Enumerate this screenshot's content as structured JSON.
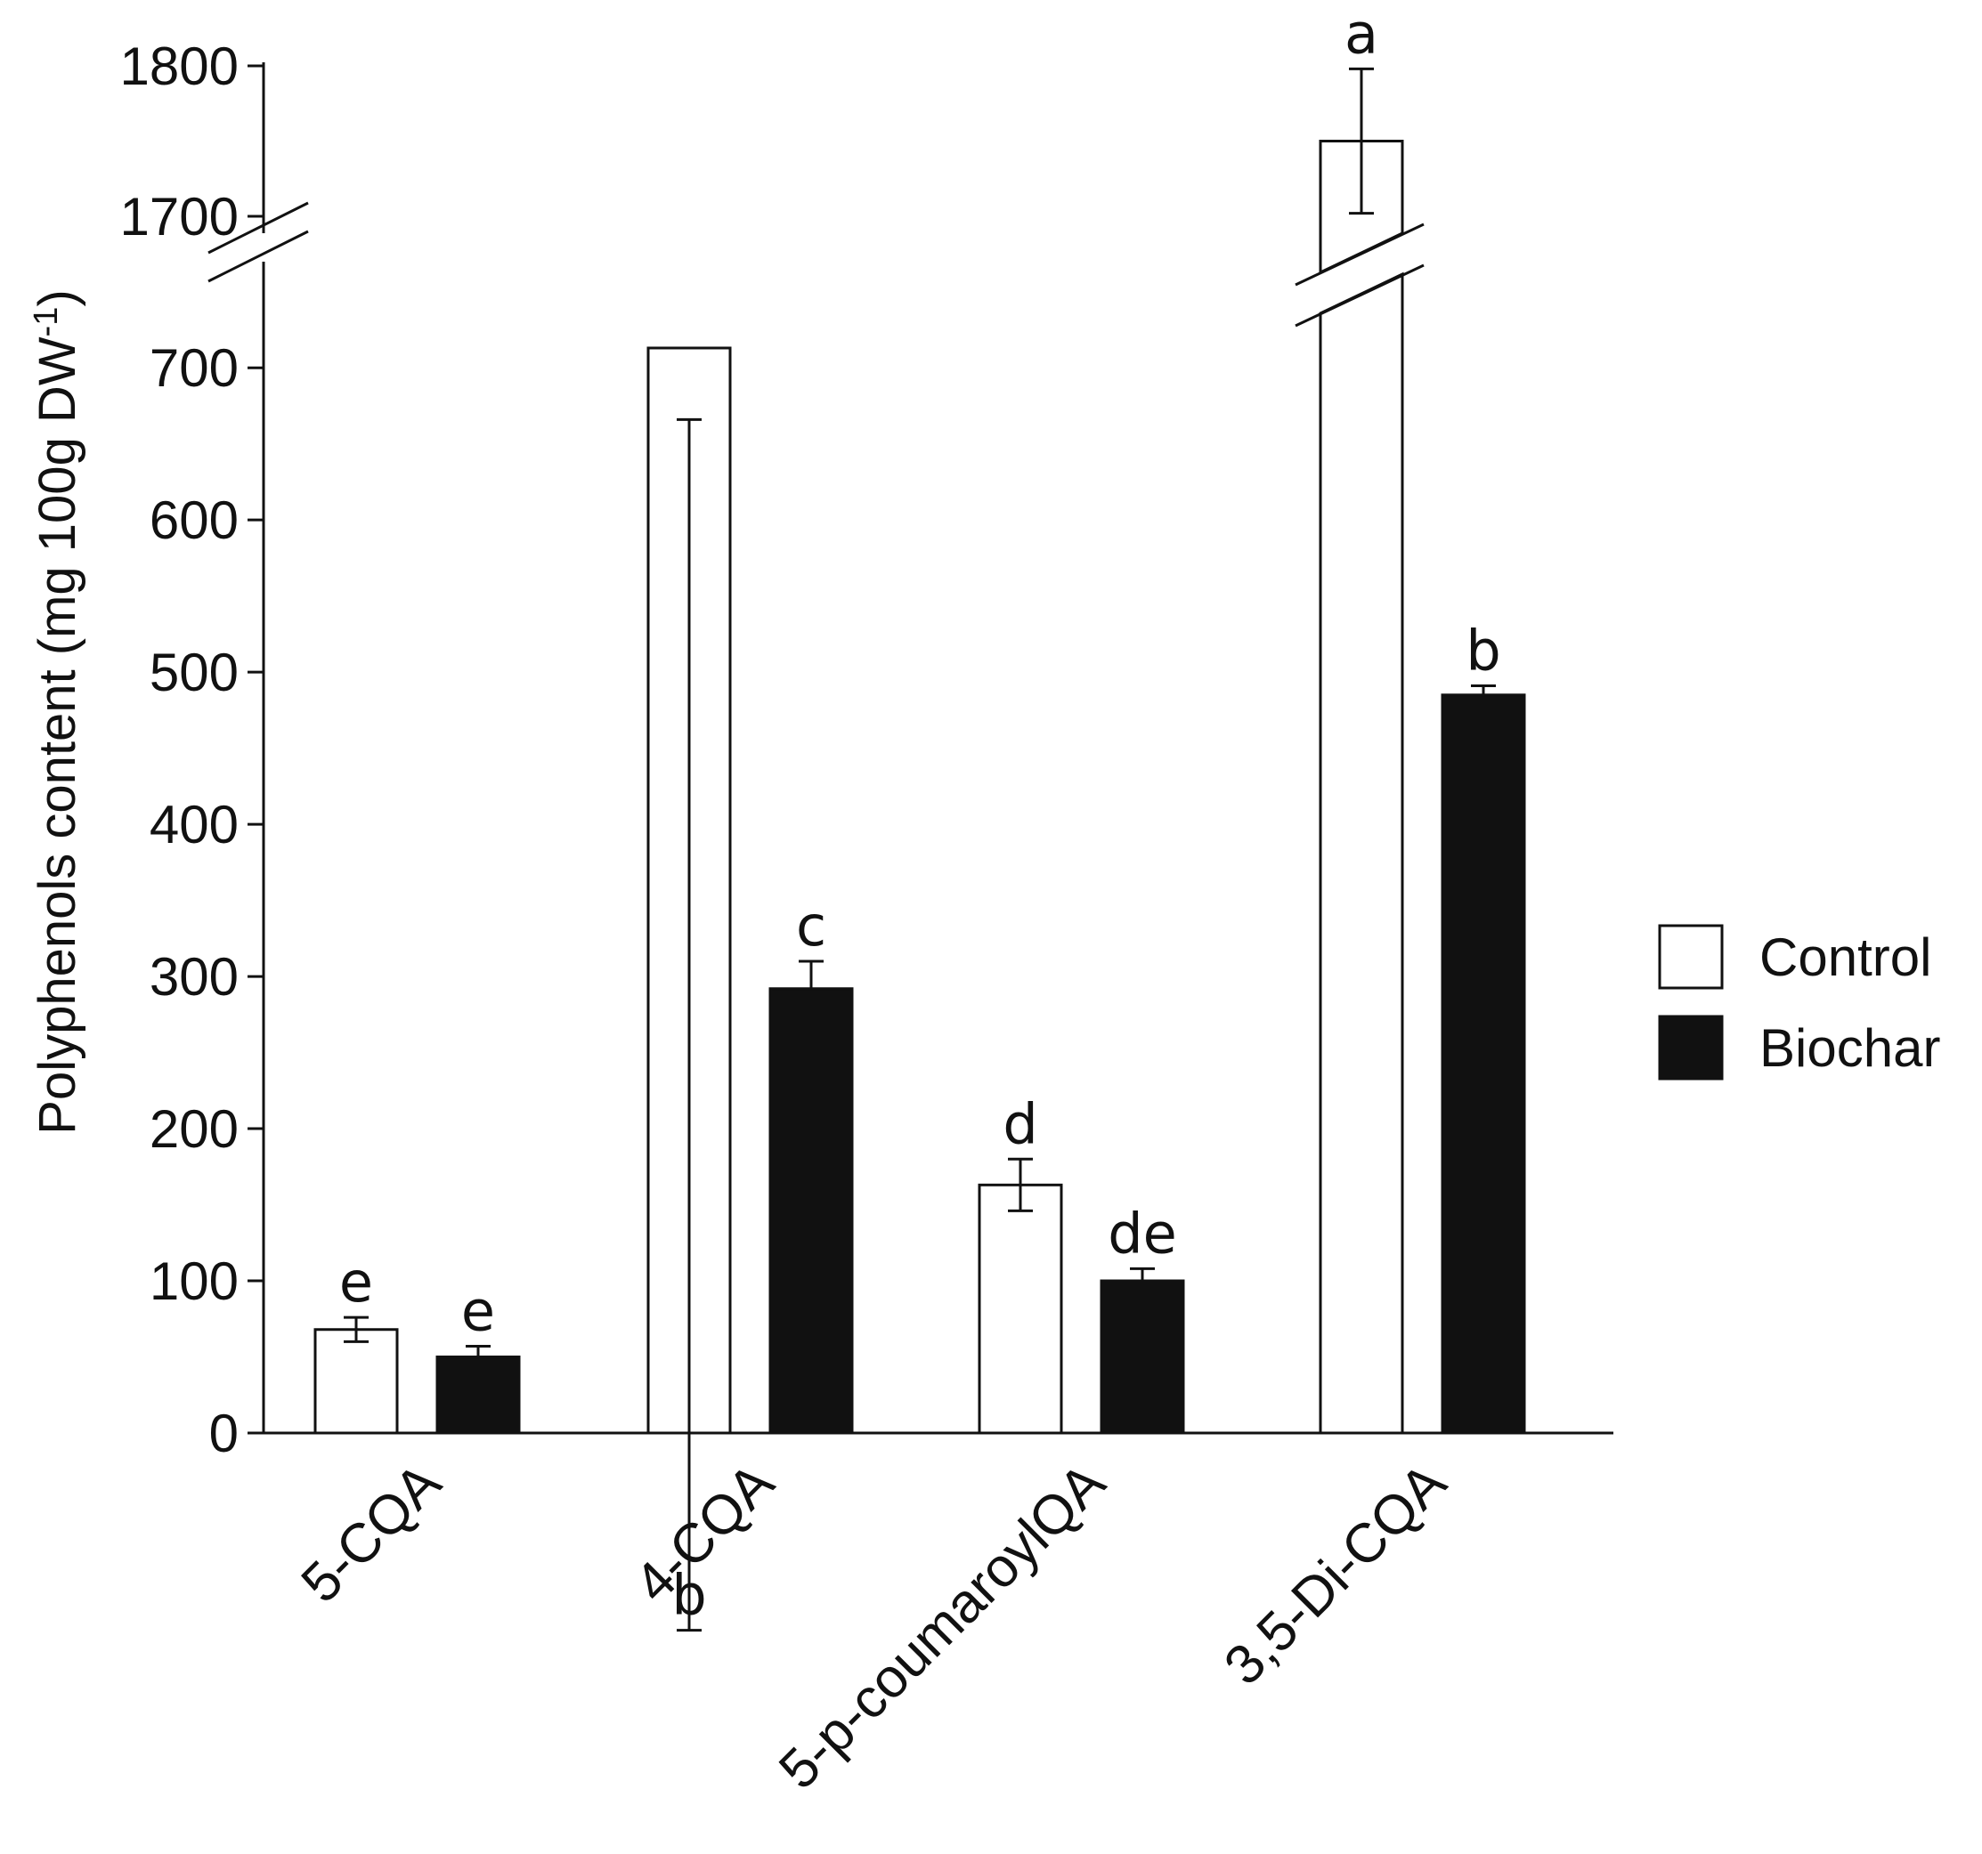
{
  "chart_data": {
    "type": "bar",
    "title": "",
    "xlabel": "",
    "ylabel": {
      "main": "Polyphenols content (mg 100g DW",
      "superscript": "-1",
      "close": ")"
    },
    "categories": [
      "5-CQA",
      "4-CQA",
      "5-p-coumaroylQA",
      "3,5-Di-CQA"
    ],
    "series": [
      {
        "name": "Control",
        "color": "#ffffff",
        "values": [
          68,
          713,
          163,
          1750
        ],
        "errors": [
          8,
          47,
          17,
          48
        ],
        "letters": [
          "e",
          "b",
          "d",
          "a"
        ]
      },
      {
        "name": "Biochar",
        "color": "#111111",
        "values": [
          50,
          292,
          100,
          485
        ],
        "errors": [
          7,
          18,
          8,
          6
        ],
        "letters": [
          "e",
          "c",
          "de",
          "b"
        ]
      }
    ],
    "y_axis": {
      "lower_segment": {
        "range": [
          0,
          750
        ],
        "ticks": [
          "0",
          "100",
          "200",
          "300",
          "400",
          "500",
          "600",
          "700"
        ]
      },
      "upper_segment": {
        "range": [
          1700,
          1800
        ],
        "ticks": [
          "1700",
          "1800"
        ]
      },
      "axis_break": true
    },
    "grid": false,
    "legend": {
      "placement": "right",
      "entries": [
        "Control",
        "Biochar"
      ]
    }
  }
}
